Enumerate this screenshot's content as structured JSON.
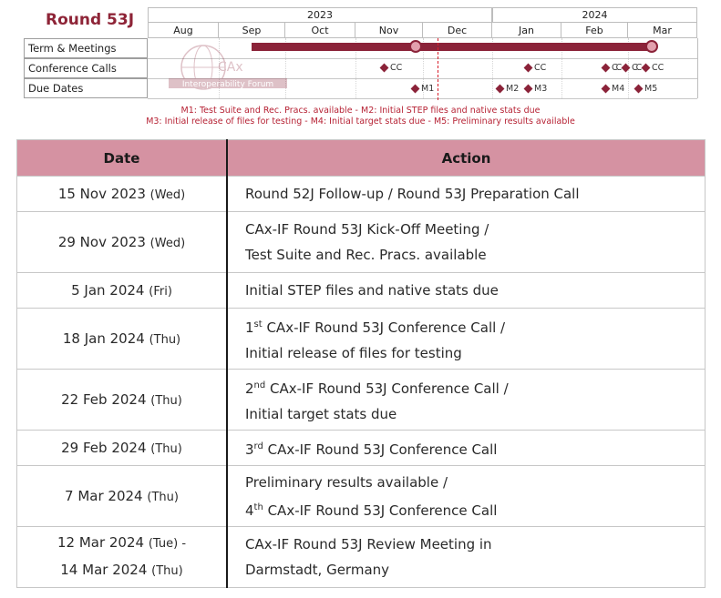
{
  "gantt": {
    "round_title": "Round 53J",
    "years": [
      "2023",
      "2024"
    ],
    "months": [
      "Aug",
      "Sep",
      "Oct",
      "Nov",
      "Dec",
      "Jan",
      "Feb",
      "Mar"
    ],
    "rows": [
      "Term & Meetings",
      "Conference Calls",
      "Due Dates"
    ],
    "conference_call_labels": [
      "CC",
      "CC",
      "CC",
      "CC",
      "CC"
    ],
    "milestone_labels": [
      "M1",
      "M2",
      "M3",
      "M4",
      "M5"
    ],
    "watermark": {
      "logo_text": "CAx",
      "banner_text": "Interoperability Forum"
    },
    "legend_line1": "M1: Test Suite and Rec. Pracs. available - M2: Initial STEP files and native stats due",
    "legend_line2": "M3: Initial release of files for testing - M4: Initial target stats due - M5: Preliminary results available",
    "colors": {
      "accent": "#8b2339",
      "legend": "#b62234",
      "today_line": "#d81e2b",
      "header_fill": "#d592a2"
    }
  },
  "table": {
    "headers": {
      "date": "Date",
      "action": "Action"
    },
    "rows": [
      {
        "date": "15 Nov 2023",
        "dow": "(Wed)",
        "action": "Round 52J Follow-up / Round 53J Preparation Call"
      },
      {
        "date": "29 Nov 2023",
        "dow": "(Wed)",
        "action_line1": "CAx-IF Round 53J Kick-Off Meeting /",
        "action_line2": "Test Suite and Rec. Pracs. available"
      },
      {
        "date": "5 Jan 2024",
        "dow": "(Fri)",
        "action": "Initial STEP files and native stats due"
      },
      {
        "date": "18 Jan 2024",
        "dow": "(Thu)",
        "ordinal_num": "1",
        "ordinal_suffix": "st",
        "action_line1_rest": " CAx-IF Round 53J Conference Call /",
        "action_line2": "Initial release of files for testing"
      },
      {
        "date": "22 Feb 2024",
        "dow": "(Thu)",
        "ordinal_num": "2",
        "ordinal_suffix": "nd",
        "action_line1_rest": " CAx-IF Round 53J Conference Call /",
        "action_line2": "Initial target stats due"
      },
      {
        "date": "29 Feb 2024",
        "dow": "(Thu)",
        "ordinal_num": "3",
        "ordinal_suffix": "rd",
        "action_line1_rest": " CAx-IF Round 53J Conference Call"
      },
      {
        "date": "7 Mar 2024",
        "dow": "(Thu)",
        "action_line1": "Preliminary results available /",
        "ordinal_num": "4",
        "ordinal_suffix": "th",
        "action_line2_rest": " CAx-IF Round 53J Conference Call"
      },
      {
        "date": "12 Mar 2024",
        "dow": "(Tue) -",
        "date2": "14 Mar 2024",
        "dow2": "(Thu)",
        "action_line1": "CAx-IF Round 53J Review Meeting in",
        "action_line2": "Darmstadt, Germany"
      }
    ]
  }
}
